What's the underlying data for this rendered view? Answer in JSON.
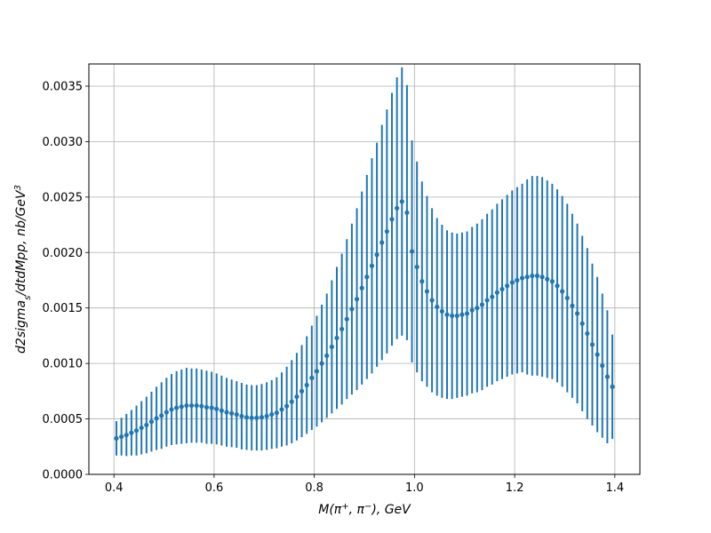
{
  "chart_data": {
    "type": "scatter",
    "title": "",
    "xlabel_parts": [
      {
        "t": "M(π",
        "sup": false
      },
      {
        "t": "+",
        "sup": true
      },
      {
        "t": ", π",
        "sup": false
      },
      {
        "t": "−",
        "sup": true
      },
      {
        "t": "), GeV",
        "sup": false
      }
    ],
    "ylabel_parts": [
      {
        "t": "d2sigma",
        "sub": false,
        "sup": false
      },
      {
        "t": "s",
        "sub": true,
        "sup": false
      },
      {
        "t": "/dtdMpp, nb/GeV",
        "sub": false,
        "sup": false
      },
      {
        "t": "3",
        "sub": false,
        "sup": true
      }
    ],
    "xlim": [
      0.35,
      1.45
    ],
    "ylim": [
      0.0,
      0.0037
    ],
    "xticks": [
      0.4,
      0.6,
      0.8,
      1.0,
      1.2,
      1.4
    ],
    "xtick_labels": [
      "0.4",
      "0.6",
      "0.8",
      "1.0",
      "1.2",
      "1.4"
    ],
    "yticks": [
      0.0,
      0.0005,
      0.001,
      0.0015,
      0.002,
      0.0025,
      0.003,
      0.0035
    ],
    "ytick_labels": [
      "0.0000",
      "0.0005",
      "0.0010",
      "0.0015",
      "0.0020",
      "0.0025",
      "0.0030",
      "0.0035"
    ],
    "grid": true,
    "series": [
      {
        "color": "#1f77b4",
        "x": [
          0.405,
          0.415,
          0.425,
          0.435,
          0.445,
          0.455,
          0.465,
          0.475,
          0.485,
          0.495,
          0.505,
          0.515,
          0.525,
          0.535,
          0.545,
          0.555,
          0.565,
          0.575,
          0.585,
          0.595,
          0.605,
          0.615,
          0.625,
          0.635,
          0.645,
          0.655,
          0.665,
          0.675,
          0.685,
          0.695,
          0.705,
          0.715,
          0.725,
          0.735,
          0.745,
          0.755,
          0.765,
          0.775,
          0.785,
          0.795,
          0.805,
          0.815,
          0.825,
          0.835,
          0.845,
          0.855,
          0.865,
          0.875,
          0.885,
          0.895,
          0.905,
          0.915,
          0.925,
          0.935,
          0.945,
          0.955,
          0.965,
          0.975,
          0.985,
          0.995,
          1.005,
          1.015,
          1.025,
          1.035,
          1.045,
          1.055,
          1.065,
          1.075,
          1.085,
          1.095,
          1.105,
          1.115,
          1.125,
          1.135,
          1.145,
          1.155,
          1.165,
          1.175,
          1.185,
          1.195,
          1.205,
          1.215,
          1.225,
          1.235,
          1.245,
          1.255,
          1.265,
          1.275,
          1.285,
          1.295,
          1.305,
          1.315,
          1.325,
          1.335,
          1.345,
          1.355,
          1.365,
          1.375,
          1.385,
          1.395
        ],
        "y": [
          0.000325,
          0.00034,
          0.000355,
          0.000375,
          0.000395,
          0.00042,
          0.000445,
          0.000475,
          0.000505,
          0.00053,
          0.00056,
          0.000585,
          0.0006,
          0.00061,
          0.00062,
          0.00062,
          0.00062,
          0.000615,
          0.000605,
          0.0006,
          0.00059,
          0.000575,
          0.00056,
          0.00055,
          0.00054,
          0.000525,
          0.000515,
          0.00051,
          0.00051,
          0.000515,
          0.000525,
          0.00054,
          0.000555,
          0.000585,
          0.000615,
          0.000655,
          0.0007,
          0.00075,
          0.000805,
          0.00087,
          0.00093,
          0.001,
          0.00107,
          0.00115,
          0.00123,
          0.00131,
          0.0014,
          0.00149,
          0.00158,
          0.00168,
          0.00178,
          0.00188,
          0.00198,
          0.00209,
          0.00219,
          0.0023,
          0.0024,
          0.00246,
          0.00236,
          0.00201,
          0.00187,
          0.00174,
          0.00165,
          0.00157,
          0.00151,
          0.00147,
          0.00144,
          0.00143,
          0.00143,
          0.00144,
          0.00145,
          0.00148,
          0.0015,
          0.00153,
          0.00157,
          0.0016,
          0.00164,
          0.00167,
          0.0017,
          0.00173,
          0.00175,
          0.00177,
          0.00178,
          0.00179,
          0.00179,
          0.00178,
          0.00176,
          0.00174,
          0.0017,
          0.00165,
          0.00159,
          0.00152,
          0.00145,
          0.00136,
          0.00127,
          0.00117,
          0.00108,
          0.00098,
          0.00088,
          0.00079
        ],
        "err": [
          0.000155,
          0.00017,
          0.00019,
          0.000205,
          0.000225,
          0.00024,
          0.000255,
          0.00027,
          0.000285,
          0.0003,
          0.00031,
          0.00032,
          0.00033,
          0.000335,
          0.00034,
          0.000335,
          0.000335,
          0.00033,
          0.00033,
          0.000325,
          0.00032,
          0.000315,
          0.00031,
          0.000305,
          0.0003,
          0.0003,
          0.000295,
          0.000295,
          0.000295,
          0.0003,
          0.000305,
          0.00031,
          0.00032,
          0.000335,
          0.000355,
          0.000375,
          0.000395,
          0.000415,
          0.00044,
          0.00047,
          0.0005,
          0.00053,
          0.00056,
          0.0006,
          0.00064,
          0.00068,
          0.00072,
          0.00077,
          0.00082,
          0.00087,
          0.00092,
          0.00097,
          0.00101,
          0.00106,
          0.0011,
          0.00114,
          0.00118,
          0.00121,
          0.00115,
          0.001,
          0.00095,
          0.0009,
          0.00086,
          0.00083,
          0.0008,
          0.00078,
          0.00076,
          0.00075,
          0.00074,
          0.00074,
          0.00074,
          0.00075,
          0.00076,
          0.00077,
          0.00078,
          0.00079,
          0.0008,
          0.00081,
          0.00082,
          0.00083,
          0.00084,
          0.00085,
          0.00088,
          0.0009,
          0.0009,
          0.0009,
          0.00089,
          0.00088,
          0.00087,
          0.00086,
          0.00085,
          0.00083,
          0.00081,
          0.00079,
          0.00077,
          0.00073,
          0.0007,
          0.00065,
          0.0006,
          0.00047
        ]
      }
    ]
  }
}
